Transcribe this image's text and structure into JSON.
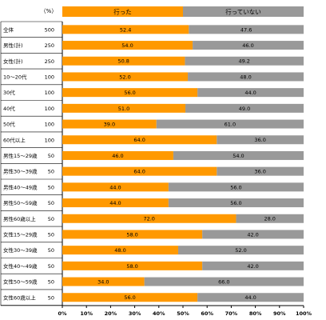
{
  "chart_data": {
    "type": "bar",
    "orientation": "horizontal",
    "stacked": true,
    "n_header": "（%）",
    "xlim": [
      0,
      100
    ],
    "x_ticks": [
      "0%",
      "10%",
      "20%",
      "30%",
      "40%",
      "50%",
      "60%",
      "70%",
      "80%",
      "90%",
      "100%"
    ],
    "categories": [
      "全体",
      "男性(計)",
      "女性(計)",
      "10～20代",
      "30代",
      "40代",
      "50代",
      "60代以上",
      "男性15～29歳",
      "男性30～39歳",
      "男性40～49歳",
      "男性50～59歳",
      "男性60歳以上",
      "女性15～29歳",
      "女性30～39歳",
      "女性40～49歳",
      "女性50～59歳",
      "女性60歳以上"
    ],
    "n": [
      "500",
      "250",
      "250",
      "100",
      "100",
      "100",
      "100",
      "100",
      "50",
      "50",
      "50",
      "50",
      "50",
      "50",
      "50",
      "50",
      "50",
      "50"
    ],
    "series": [
      {
        "name": "行った",
        "color": "#ff9900",
        "values": [
          52.4,
          54.0,
          50.8,
          52.0,
          56.0,
          51.0,
          39.0,
          64.0,
          46.0,
          64.0,
          44.0,
          44.0,
          72.0,
          58.0,
          48.0,
          58.0,
          34.0,
          56.0
        ]
      },
      {
        "name": "行っていない",
        "color": "#999999",
        "values": [
          47.6,
          46.0,
          49.2,
          48.0,
          44.0,
          49.0,
          61.0,
          36.0,
          54.0,
          36.0,
          56.0,
          56.0,
          28.0,
          42.0,
          52.0,
          42.0,
          66.0,
          44.0
        ]
      }
    ],
    "title": "",
    "xlabel": "",
    "ylabel": "",
    "legend_position": "top",
    "grid": false
  }
}
